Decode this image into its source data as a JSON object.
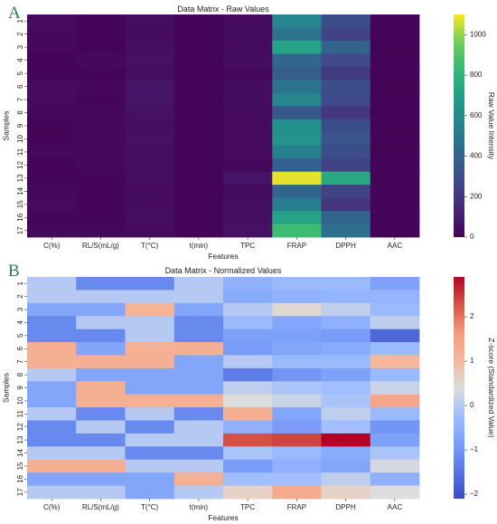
{
  "chart_data": [
    {
      "panel_letter": "A",
      "type": "heatmap",
      "title": "Data Matrix - Raw Values",
      "xlabel": "Features",
      "ylabel": "Samples",
      "x_categories": [
        "C(%)",
        "RL/S(mL/g)",
        "T(°C)",
        "t(min)",
        "TPC",
        "FRAP",
        "DPPH",
        "AAC"
      ],
      "y_categories": [
        "1",
        "2",
        "3",
        "4",
        "5",
        "6",
        "7",
        "8",
        "9",
        "10",
        "11",
        "12",
        "13",
        "14",
        "15",
        "16",
        "17"
      ],
      "colormap": "viridis",
      "colorbar": {
        "label": "Raw Value Intensity",
        "range": [
          0,
          1100
        ],
        "ticks": [
          0,
          200,
          400,
          600,
          800,
          1000
        ]
      },
      "values": [
        [
          40,
          20,
          50,
          15,
          40,
          570,
          300,
          10
        ],
        [
          30,
          10,
          40,
          15,
          40,
          480,
          250,
          10
        ],
        [
          25,
          15,
          50,
          15,
          35,
          720,
          400,
          10
        ],
        [
          10,
          30,
          60,
          15,
          45,
          410,
          280,
          10
        ],
        [
          10,
          10,
          50,
          15,
          25,
          370,
          220,
          10
        ],
        [
          40,
          30,
          70,
          15,
          45,
          480,
          300,
          10
        ],
        [
          40,
          20,
          70,
          15,
          45,
          570,
          280,
          10
        ],
        [
          30,
          30,
          60,
          15,
          35,
          340,
          200,
          10
        ],
        [
          20,
          30,
          50,
          15,
          40,
          620,
          300,
          10
        ],
        [
          20,
          30,
          60,
          15,
          40,
          640,
          330,
          10
        ],
        [
          30,
          30,
          50,
          15,
          40,
          540,
          300,
          10
        ],
        [
          10,
          30,
          50,
          15,
          30,
          380,
          250,
          10
        ],
        [
          10,
          20,
          50,
          15,
          70,
          1080,
          750,
          10
        ],
        [
          30,
          20,
          40,
          15,
          40,
          400,
          250,
          10
        ],
        [
          40,
          20,
          40,
          15,
          50,
          530,
          200,
          10
        ],
        [
          20,
          20,
          50,
          15,
          50,
          720,
          400,
          10
        ],
        [
          30,
          30,
          40,
          15,
          60,
          850,
          450,
          10
        ]
      ]
    },
    {
      "panel_letter": "B",
      "type": "heatmap",
      "title": "Data Matrix - Normalized Values",
      "xlabel": "Features",
      "ylabel": "Samples",
      "x_categories": [
        "C(%)",
        "RL/S(mL/g)",
        "T(°C)",
        "t(min)",
        "TPC",
        "FRAP",
        "DPPH",
        "AAC"
      ],
      "y_categories": [
        "1",
        "2",
        "3",
        "4",
        "5",
        "6",
        "7",
        "8",
        "9",
        "10",
        "11",
        "12",
        "13",
        "14",
        "15",
        "16",
        "17"
      ],
      "colormap": "coolwarm",
      "colorbar": {
        "label": "Z-score (Standardized Value)",
        "range": [
          -2.1,
          2.9
        ],
        "ticks": [
          -2,
          -1,
          0,
          1,
          2
        ]
      },
      "values": [
        [
          0,
          -1.2,
          -1.2,
          0,
          -0.5,
          -0.3,
          -0.3,
          -0.8
        ],
        [
          0,
          0,
          0,
          0,
          -0.6,
          -0.5,
          -0.4,
          -0.4
        ],
        [
          -0.7,
          -0.7,
          1.1,
          -0.7,
          0,
          0.5,
          0.1,
          -0.3
        ],
        [
          -1.2,
          0,
          0,
          -1.2,
          -0.3,
          -0.7,
          -0.5,
          0.1
        ],
        [
          -1.2,
          -1.2,
          0,
          -1.2,
          -0.8,
          -0.8,
          -0.9,
          -1.7
        ],
        [
          1.2,
          -0.7,
          1.2,
          1.2,
          -0.9,
          -0.7,
          -0.6,
          -0.3
        ],
        [
          1.2,
          1.2,
          1.2,
          -0.7,
          0,
          -0.3,
          -0.3,
          1.0
        ],
        [
          0,
          -0.7,
          -0.7,
          -0.7,
          -1.4,
          -1.0,
          -0.8,
          -0.3
        ],
        [
          -0.7,
          1.2,
          -0.7,
          -0.7,
          0.1,
          -0.1,
          -0.2,
          0.2
        ],
        [
          -0.7,
          1.2,
          1.2,
          1.2,
          0.4,
          0.2,
          -0.1,
          1.4
        ],
        [
          0,
          -1.2,
          0,
          -1.2,
          1.2,
          -0.7,
          0.1,
          -0.3
        ],
        [
          -1.2,
          0,
          -1.2,
          0,
          -0.5,
          -0.9,
          -0.2,
          -1.0
        ],
        [
          -1.2,
          -1.2,
          0,
          0,
          2.3,
          2.4,
          2.9,
          -0.8
        ],
        [
          0,
          0,
          -1.2,
          -1.2,
          -0.1,
          -0.3,
          -0.6,
          -0.1
        ],
        [
          1.2,
          1.2,
          0,
          0,
          -0.9,
          -0.5,
          -0.7,
          0.3
        ],
        [
          -0.7,
          -0.7,
          -0.7,
          1.2,
          -0.2,
          -0.2,
          0.1,
          -0.5
        ],
        [
          0,
          0,
          -0.7,
          0,
          0.6,
          1.3,
          0.6,
          0.4
        ]
      ]
    }
  ]
}
